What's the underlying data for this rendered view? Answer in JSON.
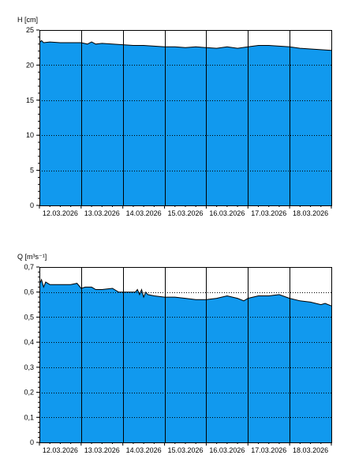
{
  "colors": {
    "fill": "#1199ee",
    "outline": "#000000",
    "grid": "#000000",
    "background": "#ffffff"
  },
  "chart_data": [
    {
      "type": "area",
      "ylabel": "H [cm]",
      "ylim": [
        0,
        25
      ],
      "yticks": [
        0,
        5,
        10,
        15,
        20,
        25
      ],
      "ytick_labels": [
        "0",
        "5",
        "10",
        "15",
        "20",
        "25"
      ],
      "xlim": [
        0,
        7
      ],
      "x_categories": [
        "12.03.2026",
        "13.03.2026",
        "14.03.2026",
        "15.03.2026",
        "16.03.2026",
        "17.03.2026",
        "18.03.2026"
      ],
      "grid": "dotted horizontal at ticks, solid vertical at day boundaries",
      "series": [
        {
          "x": [
            0,
            0.05,
            0.1,
            0.25,
            0.5,
            0.75,
            1.0,
            1.15,
            1.25,
            1.35,
            1.5,
            1.75,
            2.0,
            2.25,
            2.5,
            2.75,
            3.0,
            3.25,
            3.5,
            3.75,
            4.0,
            4.25,
            4.5,
            4.75,
            5.0,
            5.25,
            5.5,
            5.75,
            6.0,
            6.25,
            6.5,
            6.75,
            7.0
          ],
          "y": [
            23.2,
            23.5,
            23.2,
            23.3,
            23.2,
            23.2,
            23.2,
            23.0,
            23.3,
            23.0,
            23.1,
            23.0,
            22.9,
            22.8,
            22.8,
            22.7,
            22.6,
            22.6,
            22.5,
            22.6,
            22.5,
            22.4,
            22.6,
            22.4,
            22.6,
            22.8,
            22.8,
            22.7,
            22.6,
            22.4,
            22.3,
            22.2,
            22.1
          ]
        }
      ]
    },
    {
      "type": "area",
      "ylabel": "Q [m³s⁻¹]",
      "ylim": [
        0,
        0.7
      ],
      "yticks": [
        0,
        0.1,
        0.2,
        0.3,
        0.4,
        0.5,
        0.6,
        0.7
      ],
      "ytick_labels": [
        "0",
        "0,1",
        "0,2",
        "0,3",
        "0,4",
        "0,5",
        "0,6",
        "0,7"
      ],
      "xlim": [
        0,
        7
      ],
      "x_categories": [
        "12.03.2026",
        "13.03.2026",
        "14.03.2026",
        "15.03.2026",
        "16.03.2026",
        "17.03.2026",
        "18.03.2026"
      ],
      "grid": "dotted horizontal at ticks, solid vertical at day boundaries",
      "series": [
        {
          "x": [
            0,
            0.05,
            0.1,
            0.15,
            0.25,
            0.5,
            0.75,
            0.9,
            1.0,
            1.1,
            1.25,
            1.35,
            1.5,
            1.75,
            1.9,
            2.0,
            2.3,
            2.35,
            2.4,
            2.45,
            2.5,
            2.55,
            2.6,
            2.75,
            3.0,
            3.25,
            3.5,
            3.75,
            4.0,
            4.25,
            4.5,
            4.75,
            4.9,
            5.0,
            5.25,
            5.5,
            5.75,
            6.0,
            6.25,
            6.5,
            6.75,
            6.85,
            7.0
          ],
          "y": [
            0.63,
            0.65,
            0.62,
            0.64,
            0.63,
            0.63,
            0.63,
            0.635,
            0.615,
            0.62,
            0.62,
            0.61,
            0.61,
            0.615,
            0.6,
            0.6,
            0.6,
            0.61,
            0.59,
            0.61,
            0.58,
            0.6,
            0.59,
            0.585,
            0.58,
            0.58,
            0.575,
            0.57,
            0.57,
            0.575,
            0.585,
            0.575,
            0.565,
            0.575,
            0.585,
            0.585,
            0.59,
            0.575,
            0.565,
            0.56,
            0.55,
            0.555,
            0.545
          ]
        }
      ]
    }
  ]
}
